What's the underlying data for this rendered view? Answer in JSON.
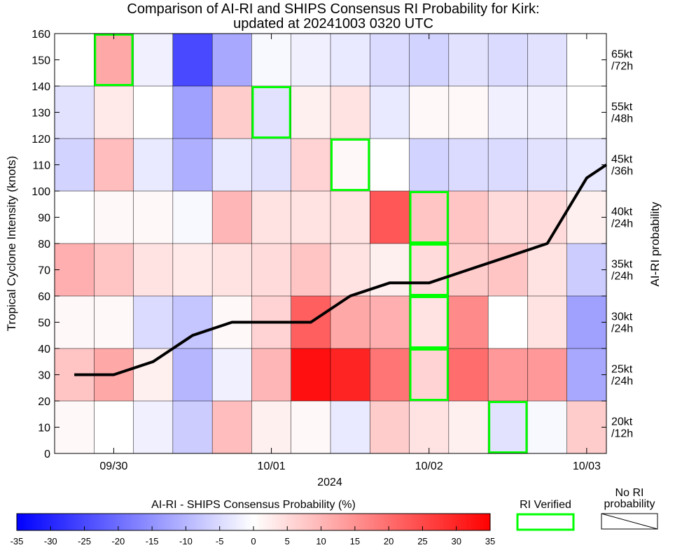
{
  "chart_data": {
    "type": "heatmap",
    "title_line1": "Comparison of AI-RI and SHIPS Consensus RI Probability for Kirk:",
    "title_line2": "updated at 20241003 0320 UTC",
    "ylabel": "Tropical Cyclone Intensity (knots)",
    "y2label": "AI-RI probability",
    "xlabel": "2024",
    "ylim": [
      0,
      160
    ],
    "yticks": [
      "0",
      "10",
      "20",
      "30",
      "40",
      "50",
      "60",
      "70",
      "80",
      "90",
      "100",
      "110",
      "120",
      "130",
      "140",
      "150",
      "160"
    ],
    "xticks": [
      {
        "label": "09/30",
        "pos": 1.5
      },
      {
        "label": "10/01",
        "pos": 5.5
      },
      {
        "label": "10/02",
        "pos": 9.5
      },
      {
        "label": "10/03",
        "pos": 13.5
      }
    ],
    "columns": 14,
    "rows": [
      {
        "label1": "20kt",
        "label2": "/12h",
        "values": [
          1,
          0,
          -2,
          -7,
          9,
          2,
          1,
          -3,
          7,
          4,
          2,
          -4,
          -1,
          7
        ]
      },
      {
        "label1": "25kt",
        "label2": "/24h",
        "values": [
          8,
          12,
          2,
          -10,
          -2,
          10,
          33,
          30,
          19,
          6,
          20,
          14,
          14,
          -12
        ]
      },
      {
        "label1": "30kt",
        "label2": "/24h",
        "values": [
          1,
          1,
          -5,
          -8,
          1,
          6,
          22,
          12,
          11,
          4,
          16,
          0,
          4,
          -13
        ]
      },
      {
        "label1": "35kt",
        "label2": "/24h",
        "values": [
          11,
          8,
          4,
          3,
          4,
          5,
          8,
          4,
          2,
          5,
          7,
          8,
          4,
          -7
        ]
      },
      {
        "label1": "40kt",
        "label2": "/24h",
        "values": [
          0,
          1,
          1,
          -1,
          10,
          4,
          4,
          4,
          23,
          8,
          8,
          5,
          5,
          2
        ]
      },
      {
        "label1": "45kt",
        "label2": "/36h",
        "values": [
          -6,
          9,
          -3,
          -11,
          -3,
          -4,
          6,
          1,
          0,
          -6,
          -5,
          -5,
          -4,
          -3
        ]
      },
      {
        "label1": "55kt",
        "label2": "/48h",
        "values": [
          -4,
          3,
          0,
          -13,
          7,
          -4,
          2,
          4,
          -3,
          1,
          1,
          -2,
          -2,
          0
        ]
      },
      {
        "label1": "65kt",
        "label2": "/72h",
        "values": [
          0,
          12,
          -2,
          -25,
          -12,
          -1,
          -2,
          -3,
          -5,
          -6,
          -4,
          -5,
          -4,
          0
        ]
      }
    ],
    "verified": [
      {
        "col": 1,
        "row": 7
      },
      {
        "col": 5,
        "row": 6
      },
      {
        "col": 7,
        "row": 5
      },
      {
        "col": 9,
        "row": 4
      },
      {
        "col": 9,
        "row": 3
      },
      {
        "col": 9,
        "row": 2
      },
      {
        "col": 9,
        "row": 1
      },
      {
        "col": 11,
        "row": 0
      }
    ],
    "intensity_line": {
      "x": [
        0.5,
        1.5,
        2.5,
        3.5,
        4.5,
        5.5,
        6.5,
        7.5,
        8.5,
        9.5,
        10.5,
        11.5,
        12.5,
        13.5,
        14.0
      ],
      "y": [
        30,
        30,
        35,
        45,
        50,
        50,
        50,
        60,
        65,
        65,
        70,
        75,
        80,
        105,
        110
      ]
    },
    "colorbar": {
      "label": "AI-RI - SHIPS Consensus Probability (%)",
      "ticks": [
        "-35",
        "-30",
        "-25",
        "-20",
        "-15",
        "-10",
        "-5",
        "0",
        "5",
        "10",
        "15",
        "20",
        "25",
        "30",
        "35"
      ],
      "min": -35,
      "max": 35
    },
    "legend": {
      "verified_label": "RI Verified",
      "no_ri_label1": "No RI",
      "no_ri_label2": "probability"
    },
    "colors": {
      "positive": "#ff0000",
      "negative": "#0000ff",
      "zero": "#ffffff",
      "verified_box": "#00ff00",
      "line": "#000000"
    }
  }
}
